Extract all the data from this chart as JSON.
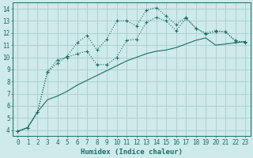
{
  "background_color": "#ceeaea",
  "grid_color": "#aed0d0",
  "line_color": "#1a6e62",
  "xlabel": "Humidex (Indice chaleur)",
  "xlim": [
    -0.5,
    23.5
  ],
  "ylim": [
    3.5,
    14.5
  ],
  "xticks": [
    0,
    1,
    2,
    3,
    4,
    5,
    6,
    7,
    8,
    9,
    10,
    11,
    12,
    13,
    14,
    15,
    16,
    17,
    18,
    19,
    20,
    21,
    22,
    23
  ],
  "yticks": [
    4,
    5,
    6,
    7,
    8,
    9,
    10,
    11,
    12,
    13,
    14
  ],
  "curve_upper_x": [
    0,
    1,
    2,
    3,
    4,
    5,
    6,
    7,
    8,
    9,
    10,
    11,
    12,
    13,
    14,
    15,
    16,
    17,
    18,
    19,
    20,
    21,
    22,
    23
  ],
  "curve_upper_y": [
    3.9,
    4.2,
    5.5,
    8.8,
    9.5,
    10.1,
    11.2,
    11.8,
    10.6,
    11.5,
    13.0,
    13.0,
    12.6,
    13.9,
    14.1,
    13.4,
    12.7,
    13.3,
    12.4,
    12.0,
    12.2,
    12.1,
    11.4,
    11.2
  ],
  "curve_mid_x": [
    0,
    1,
    2,
    3,
    4,
    5,
    6,
    7,
    8,
    9,
    10,
    11,
    12,
    13,
    14,
    15,
    16,
    17,
    18,
    19,
    20,
    21,
    22,
    23
  ],
  "curve_mid_y": [
    3.9,
    4.2,
    5.5,
    8.8,
    9.8,
    10.0,
    10.3,
    10.5,
    9.4,
    9.4,
    10.0,
    11.4,
    11.5,
    12.9,
    13.3,
    13.0,
    12.2,
    13.2,
    12.4,
    11.9,
    12.1,
    12.1,
    11.3,
    11.3
  ],
  "curve_low_x": [
    0,
    1,
    2,
    3,
    4,
    5,
    6,
    7,
    8,
    9,
    10,
    11,
    12,
    13,
    14,
    15,
    16,
    17,
    18,
    19,
    20,
    21,
    22,
    23
  ],
  "curve_low_y": [
    3.9,
    4.2,
    5.5,
    6.5,
    6.8,
    7.2,
    7.7,
    8.1,
    8.5,
    8.9,
    9.3,
    9.7,
    10.0,
    10.3,
    10.5,
    10.6,
    10.8,
    11.1,
    11.4,
    11.6,
    11.0,
    11.1,
    11.2,
    11.3
  ],
  "xlabel_fontsize": 6.5,
  "tick_fontsize": 5.5
}
